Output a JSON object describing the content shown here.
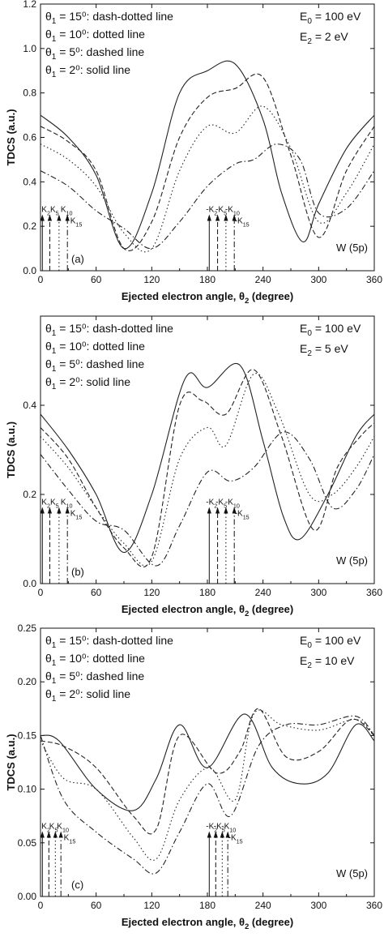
{
  "chart_data": [
    {
      "type": "line",
      "panel_label": "(a)",
      "target_label": "W (5p)",
      "xlabel": "Ejected electron angle, θ2 (degree)",
      "ylabel": "TDCS (a.u.)",
      "xlim": [
        0,
        360
      ],
      "ylim": [
        0,
        1.2
      ],
      "xticks": [
        0,
        60,
        120,
        180,
        240,
        300,
        360
      ],
      "yticks": [
        0.0,
        0.2,
        0.4,
        0.6,
        0.8,
        1.0,
        1.2
      ],
      "ytick_labels": [
        "0.0",
        "0.2",
        "0.4",
        "0.6",
        "0.8",
        "1.0",
        "1.2"
      ],
      "params": [
        "E0 = 100 eV",
        "E2 = 2 eV"
      ],
      "legend_placement": "top-left",
      "legend": [
        "θ1 = 15⁰: dash-dotted line",
        "θ1 = 10⁰: dotted line",
        "θ1 = 5⁰: dashed line",
        "θ1 = 2⁰: solid line"
      ],
      "series": [
        {
          "style": "dash-dotted",
          "x": [
            0,
            30,
            60,
            90,
            120,
            150,
            180,
            210,
            230,
            255,
            280,
            300,
            330,
            360
          ],
          "y": [
            0.45,
            0.38,
            0.27,
            0.19,
            0.1,
            0.22,
            0.38,
            0.48,
            0.5,
            0.57,
            0.5,
            0.26,
            0.28,
            0.45
          ]
        },
        {
          "style": "dotted",
          "x": [
            0,
            30,
            60,
            90,
            120,
            150,
            180,
            210,
            240,
            270,
            300,
            330,
            360
          ],
          "y": [
            0.57,
            0.5,
            0.38,
            0.17,
            0.1,
            0.45,
            0.65,
            0.62,
            0.74,
            0.55,
            0.22,
            0.35,
            0.57
          ]
        },
        {
          "style": "dashed",
          "x": [
            0,
            30,
            60,
            90,
            120,
            150,
            180,
            210,
            240,
            270,
            300,
            330,
            360
          ],
          "y": [
            0.65,
            0.58,
            0.45,
            0.1,
            0.22,
            0.6,
            0.78,
            0.82,
            0.87,
            0.52,
            0.15,
            0.45,
            0.65
          ]
        },
        {
          "style": "solid",
          "x": [
            0,
            30,
            60,
            90,
            120,
            150,
            180,
            210,
            240,
            260,
            283,
            300,
            330,
            360
          ],
          "y": [
            0.7,
            0.6,
            0.43,
            0.1,
            0.35,
            0.8,
            0.9,
            0.93,
            0.68,
            0.35,
            0.13,
            0.3,
            0.55,
            0.7
          ]
        }
      ],
      "arrows_left": [
        {
          "label": "K2",
          "x": 2,
          "style": "solid"
        },
        {
          "label": "K5",
          "x": 10,
          "style": "dashed"
        },
        {
          "label": "K10",
          "x": 20,
          "style": "dotted"
        },
        {
          "label": "K15",
          "x": 29,
          "style": "dash-dotted"
        }
      ],
      "arrows_right": [
        {
          "label": "-K2",
          "x": 182,
          "style": "solid"
        },
        {
          "label": "-K5",
          "x": 191,
          "style": "dashed"
        },
        {
          "label": "-K10",
          "x": 200,
          "style": "dotted"
        },
        {
          "label": "-K15",
          "x": 209,
          "style": "dash-dotted"
        }
      ],
      "arrow_top": 0.25
    },
    {
      "type": "line",
      "panel_label": "(b)",
      "target_label": "W (5p)",
      "xlabel": "Ejected electron angle, θ2 (degree)",
      "ylabel": "TDCS (a.u.)",
      "xlim": [
        0,
        360
      ],
      "ylim": [
        0,
        0.6
      ],
      "xticks": [
        0,
        60,
        120,
        180,
        240,
        300,
        360
      ],
      "yticks": [
        0.0,
        0.2,
        0.4
      ],
      "ytick_labels": [
        "0.0",
        "0.2",
        "0.4"
      ],
      "params": [
        "E0 = 100 eV",
        "E2 = 5 eV"
      ],
      "legend_placement": "top-left",
      "legend": [
        "θ1 = 15⁰: dash-dotted line",
        "θ1 = 10⁰: dotted line",
        "θ1 = 5⁰: dashed line",
        "θ1 = 2⁰: solid line"
      ],
      "series": [
        {
          "style": "dash-dotted",
          "x": [
            0,
            30,
            60,
            90,
            125,
            150,
            180,
            205,
            230,
            262,
            290,
            315,
            340,
            360
          ],
          "y": [
            0.29,
            0.21,
            0.14,
            0.12,
            0.04,
            0.13,
            0.25,
            0.23,
            0.26,
            0.34,
            0.28,
            0.17,
            0.21,
            0.29
          ]
        },
        {
          "style": "dotted",
          "x": [
            0,
            30,
            60,
            90,
            120,
            150,
            180,
            200,
            230,
            257,
            290,
            315,
            340,
            360
          ],
          "y": [
            0.33,
            0.26,
            0.17,
            0.09,
            0.05,
            0.28,
            0.35,
            0.31,
            0.47,
            0.38,
            0.2,
            0.2,
            0.26,
            0.33
          ]
        },
        {
          "style": "dashed",
          "x": [
            0,
            30,
            60,
            90,
            120,
            150,
            175,
            200,
            230,
            260,
            295,
            320,
            345,
            360
          ],
          "y": [
            0.35,
            0.28,
            0.17,
            0.08,
            0.06,
            0.4,
            0.41,
            0.38,
            0.48,
            0.33,
            0.12,
            0.26,
            0.33,
            0.36
          ]
        },
        {
          "style": "solid",
          "x": [
            0,
            30,
            60,
            90,
            120,
            156,
            180,
            215,
            240,
            262,
            280,
            310,
            340,
            360
          ],
          "y": [
            0.38,
            0.3,
            0.2,
            0.07,
            0.2,
            0.46,
            0.44,
            0.49,
            0.32,
            0.15,
            0.1,
            0.2,
            0.33,
            0.38
          ]
        }
      ],
      "arrows_left": [
        {
          "label": "K2",
          "x": 2,
          "style": "solid"
        },
        {
          "label": "K5",
          "x": 10,
          "style": "dashed"
        },
        {
          "label": "K10",
          "x": 20,
          "style": "dotted"
        },
        {
          "label": "K15",
          "x": 29,
          "style": "dash-dotted"
        }
      ],
      "arrows_right": [
        {
          "label": "-K2",
          "x": 182,
          "style": "solid"
        },
        {
          "label": "-K5",
          "x": 191,
          "style": "dashed"
        },
        {
          "label": "-K10",
          "x": 200,
          "style": "dotted"
        },
        {
          "label": "-K15",
          "x": 209,
          "style": "dash-dotted"
        }
      ],
      "arrow_top": 0.17
    },
    {
      "type": "line",
      "panel_label": "(c)",
      "target_label": "W (5p)",
      "xlabel": "Ejected electron angle, θ2 (degree)",
      "ylabel": "TDCS (a.u.)",
      "xlim": [
        0,
        360
      ],
      "ylim": [
        0,
        0.25
      ],
      "xticks": [
        0,
        60,
        120,
        180,
        240,
        300,
        360
      ],
      "yticks": [
        0.0,
        0.05,
        0.1,
        0.15,
        0.2,
        0.25
      ],
      "ytick_labels": [
        "0.00",
        "0.05",
        "0.10",
        "0.15",
        "0.20",
        "0.25"
      ],
      "params": [
        "E0 = 100 eV",
        "E2 = 10 eV"
      ],
      "legend_placement": "top-left",
      "legend": [
        "θ1 = 15⁰: dash-dotted line",
        "θ1 = 10⁰: dotted line",
        "θ1 = 5⁰: dashed line",
        "θ1 = 2⁰: solid line"
      ],
      "series": [
        {
          "style": "dash-dotted",
          "x": [
            0,
            25,
            60,
            100,
            125,
            150,
            180,
            205,
            235,
            265,
            300,
            340,
            360
          ],
          "y": [
            0.15,
            0.09,
            0.06,
            0.035,
            0.022,
            0.06,
            0.105,
            0.075,
            0.14,
            0.16,
            0.16,
            0.168,
            0.15
          ]
        },
        {
          "style": "dotted",
          "x": [
            0,
            25,
            60,
            100,
            125,
            150,
            182,
            210,
            230,
            260,
            300,
            340,
            360
          ],
          "y": [
            0.145,
            0.11,
            0.1,
            0.055,
            0.035,
            0.09,
            0.12,
            0.09,
            0.17,
            0.16,
            0.155,
            0.165,
            0.15
          ]
        },
        {
          "style": "dashed",
          "x": [
            0,
            25,
            60,
            100,
            125,
            150,
            190,
            215,
            235,
            265,
            300,
            335,
            360
          ],
          "y": [
            0.145,
            0.14,
            0.12,
            0.075,
            0.063,
            0.15,
            0.115,
            0.135,
            0.175,
            0.13,
            0.135,
            0.165,
            0.15
          ]
        },
        {
          "style": "solid",
          "x": [
            0,
            20,
            60,
            100,
            125,
            150,
            180,
            220,
            250,
            280,
            310,
            340,
            360
          ],
          "y": [
            0.15,
            0.145,
            0.1,
            0.08,
            0.11,
            0.16,
            0.12,
            0.17,
            0.12,
            0.105,
            0.115,
            0.16,
            0.145
          ]
        }
      ],
      "arrows_left": [
        {
          "label": "K2",
          "x": 2,
          "style": "solid"
        },
        {
          "label": "K5",
          "x": 9,
          "style": "dashed"
        },
        {
          "label": "K10",
          "x": 16,
          "style": "dotted"
        },
        {
          "label": "K15",
          "x": 22,
          "style": "dash-dotted"
        }
      ],
      "arrows_right": [
        {
          "label": "-K2",
          "x": 182,
          "style": "solid"
        },
        {
          "label": "-K5",
          "x": 189,
          "style": "dashed"
        },
        {
          "label": "-K10",
          "x": 196,
          "style": "dotted"
        },
        {
          "label": "-K15",
          "x": 202,
          "style": "dash-dotted"
        }
      ],
      "arrow_top": 0.06
    }
  ]
}
